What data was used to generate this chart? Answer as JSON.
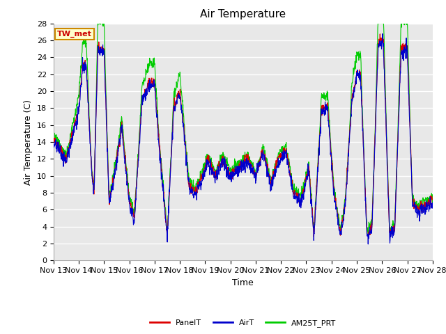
{
  "title": "Air Temperature",
  "ylabel": "Air Temperature (C)",
  "xlabel": "Time",
  "annotation": "TW_met",
  "xtick_labels": [
    "Nov 13",
    "Nov 14",
    "Nov 15",
    "Nov 16",
    "Nov 17",
    "Nov 18",
    "Nov 19",
    "Nov 20",
    "Nov 21",
    "Nov 22",
    "Nov 23",
    "Nov 24",
    "Nov 25",
    "Nov 26",
    "Nov 27",
    "Nov 28"
  ],
  "ytick_labels": [
    0,
    2,
    4,
    6,
    8,
    10,
    12,
    14,
    16,
    18,
    20,
    22,
    24,
    26,
    28
  ],
  "ylim": [
    0,
    28
  ],
  "fig_background_color": "#ffffff",
  "plot_bg_color": "#e8e8e8",
  "grid_color": "#ffffff",
  "line_colors": {
    "PanelT": "#dd0000",
    "AirT": "#0000cc",
    "AM25T_PRT": "#00cc00"
  },
  "title_fontsize": 11,
  "axis_label_fontsize": 9,
  "tick_fontsize": 8,
  "annotation_box_facecolor": "#ffffcc",
  "annotation_box_edgecolor": "#cc8800",
  "annotation_text_color": "#cc0000",
  "annotation_fontsize": 8
}
